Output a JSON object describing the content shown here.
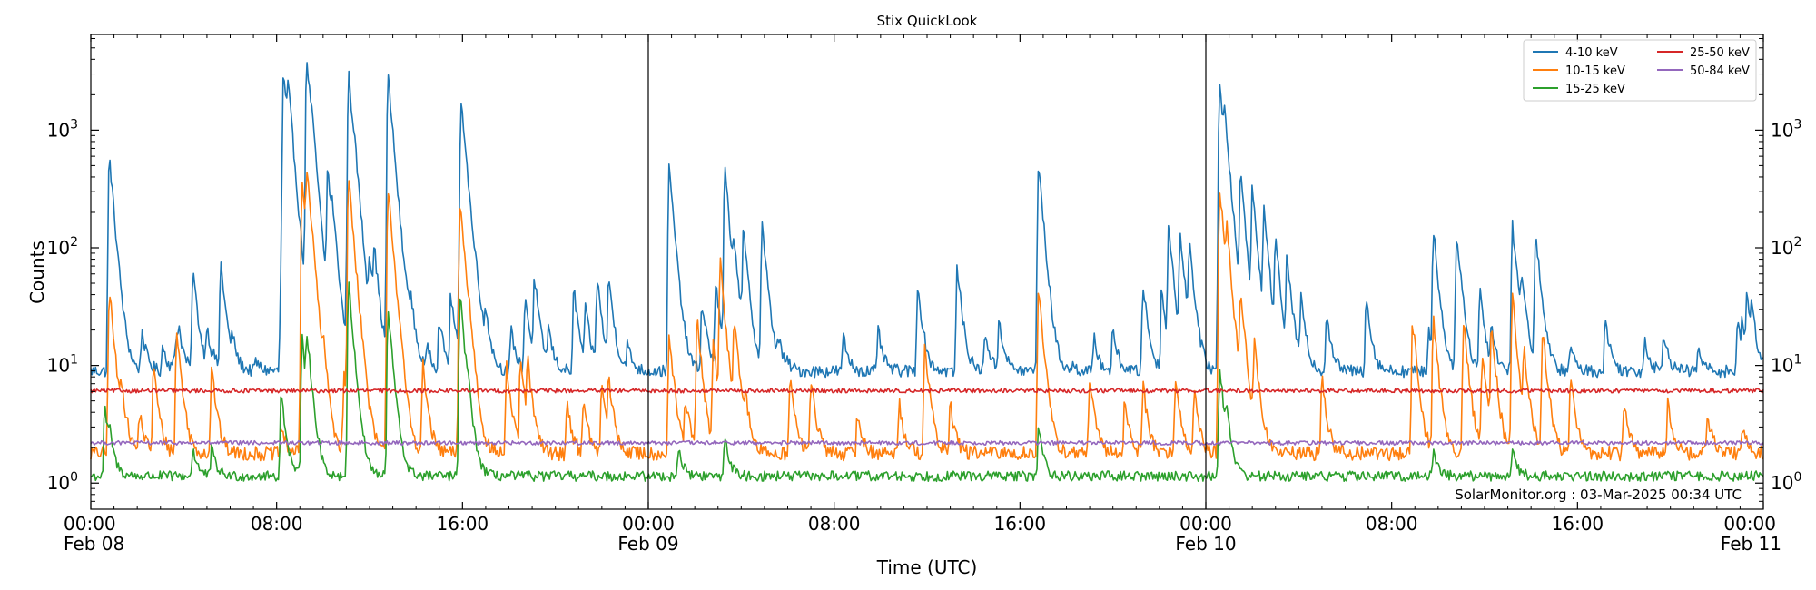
{
  "chart_data": {
    "type": "line",
    "title": "Stix QuickLook",
    "xlabel": "Time (UTC)",
    "ylabel": "Counts",
    "yscale": "log",
    "ylim": [
      0.6,
      6500
    ],
    "xlim_hours": [
      0,
      72
    ],
    "y_ticks": [
      {
        "value": 1,
        "base": "10",
        "exp": "0"
      },
      {
        "value": 10,
        "base": "10",
        "exp": "1"
      },
      {
        "value": 100,
        "base": "10",
        "exp": "2"
      },
      {
        "value": 1000,
        "base": "10",
        "exp": "3"
      }
    ],
    "x_ticks": [
      {
        "hour": 0,
        "time": "00:00",
        "date": "Feb 08"
      },
      {
        "hour": 8,
        "time": "08:00",
        "date": ""
      },
      {
        "hour": 16,
        "time": "16:00",
        "date": ""
      },
      {
        "hour": 24,
        "time": "00:00",
        "date": "Feb 09"
      },
      {
        "hour": 32,
        "time": "08:00",
        "date": ""
      },
      {
        "hour": 40,
        "time": "16:00",
        "date": ""
      },
      {
        "hour": 48,
        "time": "00:00",
        "date": "Feb 10"
      },
      {
        "hour": 56,
        "time": "08:00",
        "date": ""
      },
      {
        "hour": 64,
        "time": "16:00",
        "date": ""
      },
      {
        "hour": 72,
        "time": "00:00",
        "date": "Feb 11"
      }
    ],
    "day_boundaries_hours": [
      24,
      48
    ],
    "credit": "SolarMonitor.org : 03-Mar-2025 00:34 UTC",
    "legend_position": "top-right",
    "series": [
      {
        "name": "4-10 keV",
        "color": "#1f77b4",
        "background": 9,
        "noise": 0.12,
        "peaks": [
          [
            0.8,
            600
          ],
          [
            2.2,
            20
          ],
          [
            3.1,
            15
          ],
          [
            4.4,
            65
          ],
          [
            3.7,
            18
          ],
          [
            5.3,
            10
          ],
          [
            3.6,
            12
          ],
          [
            5.6,
            75
          ],
          [
            3.8,
            15
          ],
          [
            5.0,
            20
          ],
          [
            6.1,
            15
          ],
          [
            7.1,
            11
          ],
          [
            9.4,
            15
          ],
          [
            8.2,
            75
          ],
          [
            8.3,
            3000
          ],
          [
            8.5,
            1500
          ],
          [
            9.3,
            4000
          ],
          [
            9.5,
            300
          ],
          [
            10.2,
            450
          ],
          [
            10.4,
            100
          ],
          [
            11.1,
            3000
          ],
          [
            11.3,
            200
          ],
          [
            12.0,
            70
          ],
          [
            12.2,
            80
          ],
          [
            12.8,
            2900
          ],
          [
            13.6,
            25
          ],
          [
            13.8,
            22
          ],
          [
            14.5,
            15
          ],
          [
            15.0,
            25
          ],
          [
            15.5,
            40
          ],
          [
            15.9,
            140
          ],
          [
            15.95,
            1800
          ],
          [
            16.3,
            20
          ],
          [
            16.6,
            30
          ],
          [
            17.0,
            25
          ],
          [
            18.1,
            20
          ],
          [
            18.7,
            40
          ],
          [
            19.1,
            55
          ],
          [
            19.7,
            20
          ],
          [
            20.8,
            45
          ],
          [
            21.3,
            30
          ],
          [
            21.8,
            55
          ],
          [
            22.3,
            55
          ],
          [
            23.1,
            15
          ],
          [
            24.9,
            480
          ],
          [
            26.3,
            30
          ],
          [
            26.4,
            15
          ],
          [
            26.9,
            50
          ],
          [
            27.3,
            460
          ],
          [
            27.7,
            75
          ],
          [
            28.1,
            130
          ],
          [
            28.9,
            160
          ],
          [
            29.6,
            15
          ],
          [
            30.0,
            10
          ],
          [
            32.4,
            18
          ],
          [
            33.9,
            20
          ],
          [
            35.6,
            50
          ],
          [
            37.3,
            70
          ],
          [
            38.5,
            20
          ],
          [
            39.1,
            25
          ],
          [
            40.8,
            520
          ],
          [
            42.3,
            10
          ],
          [
            43.2,
            17
          ],
          [
            44.0,
            20
          ],
          [
            45.3,
            50
          ],
          [
            46.1,
            45
          ],
          [
            46.4,
            150
          ],
          [
            46.9,
            130
          ],
          [
            47.3,
            100
          ],
          [
            48.6,
            2600
          ],
          [
            48.8,
            800
          ],
          [
            49.5,
            400
          ],
          [
            50.0,
            300
          ],
          [
            50.5,
            200
          ],
          [
            51.0,
            110
          ],
          [
            51.5,
            80
          ],
          [
            52.1,
            35
          ],
          [
            53.2,
            28
          ],
          [
            54.9,
            40
          ],
          [
            57.6,
            20
          ],
          [
            57.8,
            140
          ],
          [
            58.8,
            140
          ],
          [
            59.8,
            45
          ],
          [
            60.3,
            20
          ],
          [
            61.2,
            160
          ],
          [
            61.6,
            50
          ],
          [
            62.2,
            140
          ],
          [
            63.7,
            15
          ],
          [
            65.2,
            25
          ],
          [
            66.9,
            17
          ],
          [
            67.7,
            20
          ],
          [
            69.2,
            14
          ],
          [
            70.9,
            25
          ],
          [
            71.1,
            20
          ],
          [
            71.3,
            35
          ],
          [
            71.5,
            25
          ]
        ]
      },
      {
        "name": "10-15 keV",
        "color": "#ff7f0e",
        "background": 1.8,
        "noise": 0.14,
        "peaks": [
          [
            0.8,
            45
          ],
          [
            1.3,
            6
          ],
          [
            2.1,
            4
          ],
          [
            2.7,
            10
          ],
          [
            3.7,
            20
          ],
          [
            5.2,
            10
          ],
          [
            8.2,
            3
          ],
          [
            9.1,
            360
          ],
          [
            9.3,
            380
          ],
          [
            10.0,
            8
          ],
          [
            10.9,
            8
          ],
          [
            11.1,
            400
          ],
          [
            11.5,
            4
          ],
          [
            12.8,
            340
          ],
          [
            14.3,
            10
          ],
          [
            15.9,
            250
          ],
          [
            16.3,
            8
          ],
          [
            17.9,
            10
          ],
          [
            18.5,
            11
          ],
          [
            18.8,
            10
          ],
          [
            20.5,
            5
          ],
          [
            21.2,
            5
          ],
          [
            22.0,
            7
          ],
          [
            22.3,
            7
          ],
          [
            24.9,
            18
          ],
          [
            25.6,
            5
          ],
          [
            26.1,
            25
          ],
          [
            26.8,
            15
          ],
          [
            27.1,
            75
          ],
          [
            27.7,
            25
          ],
          [
            28.2,
            4
          ],
          [
            30.1,
            8
          ],
          [
            31.0,
            8
          ],
          [
            33.0,
            4
          ],
          [
            34.8,
            5
          ],
          [
            35.9,
            15
          ],
          [
            37.0,
            5
          ],
          [
            40.8,
            45
          ],
          [
            43.0,
            8
          ],
          [
            44.5,
            5
          ],
          [
            45.3,
            7
          ],
          [
            46.7,
            8
          ],
          [
            47.5,
            6
          ],
          [
            48.6,
            320
          ],
          [
            48.9,
            100
          ],
          [
            49.5,
            40
          ],
          [
            50.1,
            15
          ],
          [
            53.0,
            8
          ],
          [
            56.9,
            25
          ],
          [
            57.8,
            25
          ],
          [
            59.1,
            25
          ],
          [
            59.9,
            12
          ],
          [
            60.3,
            20
          ],
          [
            61.2,
            40
          ],
          [
            61.7,
            12
          ],
          [
            62.5,
            20
          ],
          [
            63.7,
            8
          ],
          [
            66.0,
            5
          ],
          [
            67.9,
            5
          ],
          [
            69.6,
            4
          ],
          [
            71.1,
            3
          ]
        ]
      },
      {
        "name": "15-25 keV",
        "color": "#2ca02c",
        "background": 1.15,
        "noise": 0.1,
        "peaks": [
          [
            0.6,
            4.5
          ],
          [
            0.8,
            2
          ],
          [
            4.4,
            2
          ],
          [
            5.2,
            2
          ],
          [
            8.2,
            6
          ],
          [
            9.1,
            17
          ],
          [
            9.3,
            15
          ],
          [
            11.1,
            50
          ],
          [
            12.8,
            30
          ],
          [
            15.9,
            40
          ],
          [
            16.2,
            3
          ],
          [
            25.3,
            2
          ],
          [
            27.3,
            2.5
          ],
          [
            40.8,
            3
          ],
          [
            48.6,
            10
          ],
          [
            48.9,
            3
          ],
          [
            57.8,
            2
          ],
          [
            61.2,
            2
          ]
        ]
      },
      {
        "name": "25-50 keV",
        "color": "#d62728",
        "background": 6.1,
        "noise": 0.04,
        "peaks": []
      },
      {
        "name": "50-84 keV",
        "color": "#9467bd",
        "background": 2.2,
        "noise": 0.04,
        "peaks": []
      }
    ]
  }
}
